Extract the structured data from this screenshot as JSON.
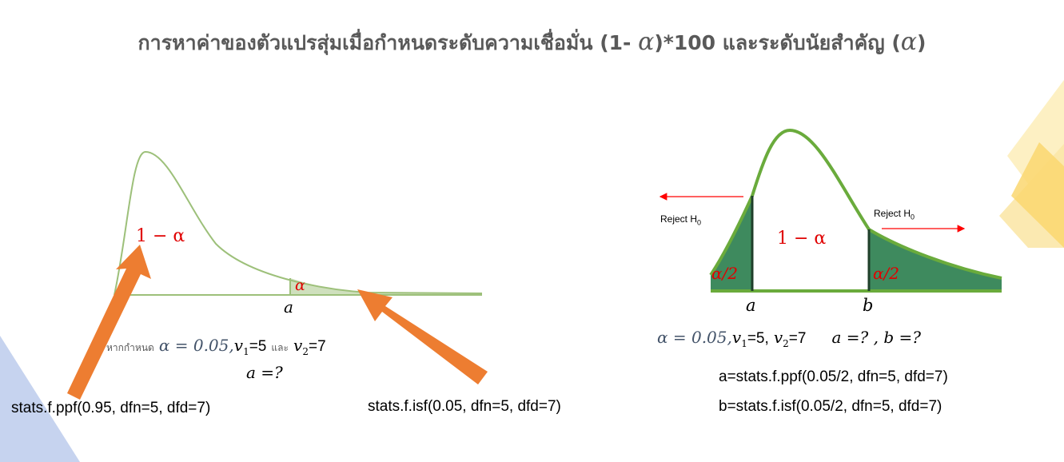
{
  "title": {
    "text": "การหาค่าของตัวแปรสุ่มเมื่อกำหนดระดับความเชื่อมั่น (1- ",
    "alpha": "α",
    "middle": ")*100 และระดับนัยสำคัญ (",
    "close": ")"
  },
  "left_figure": {
    "region_label": "1 − α",
    "tail_label": "α",
    "critical_label": "a",
    "given_prefix": "หากกำหนด",
    "given_alpha": "α = 0.05,",
    "v1_symbol": "v",
    "v1_sub": "1",
    "v1_value": "=5",
    "and_word": "และ",
    "v2_symbol": "v",
    "v2_sub": "2",
    "v2_value": "=7",
    "question": "a =?",
    "code_left": "stats.f.ppf(0.95, dfn=5, dfd=7)",
    "code_right": "stats.f.isf(0.05, dfn=5, dfd=7)",
    "colors": {
      "curve": "#9dc07a",
      "tail_fill": "#cfe0bd",
      "arrow": "#ed7d31"
    }
  },
  "right_figure": {
    "reject_left": "Reject H",
    "reject_left_sub": "0",
    "reject_right": "Reject H",
    "reject_right_sub": "0",
    "center_label": "1 − α",
    "left_tail_label": "α/2",
    "right_tail_label": "α/2",
    "a_label": "a",
    "b_label": "b",
    "given_alpha": "α = 0.05,",
    "v1_symbol": "v",
    "v1_sub": "1",
    "v1_value": "=5,",
    "v2_symbol": "v",
    "v2_sub": "2",
    "v2_value": "=7",
    "question": "a =? , b =?",
    "code_a": "a=stats.f.ppf(0.05/2, dfn=5, dfd=7)",
    "code_b": "b=stats.f.isf(0.05/2, dfn=5, dfd=7)",
    "colors": {
      "curve": "#6aab3c",
      "tail_fill": "#3e8a5e",
      "arrow": "#ff0000"
    }
  }
}
